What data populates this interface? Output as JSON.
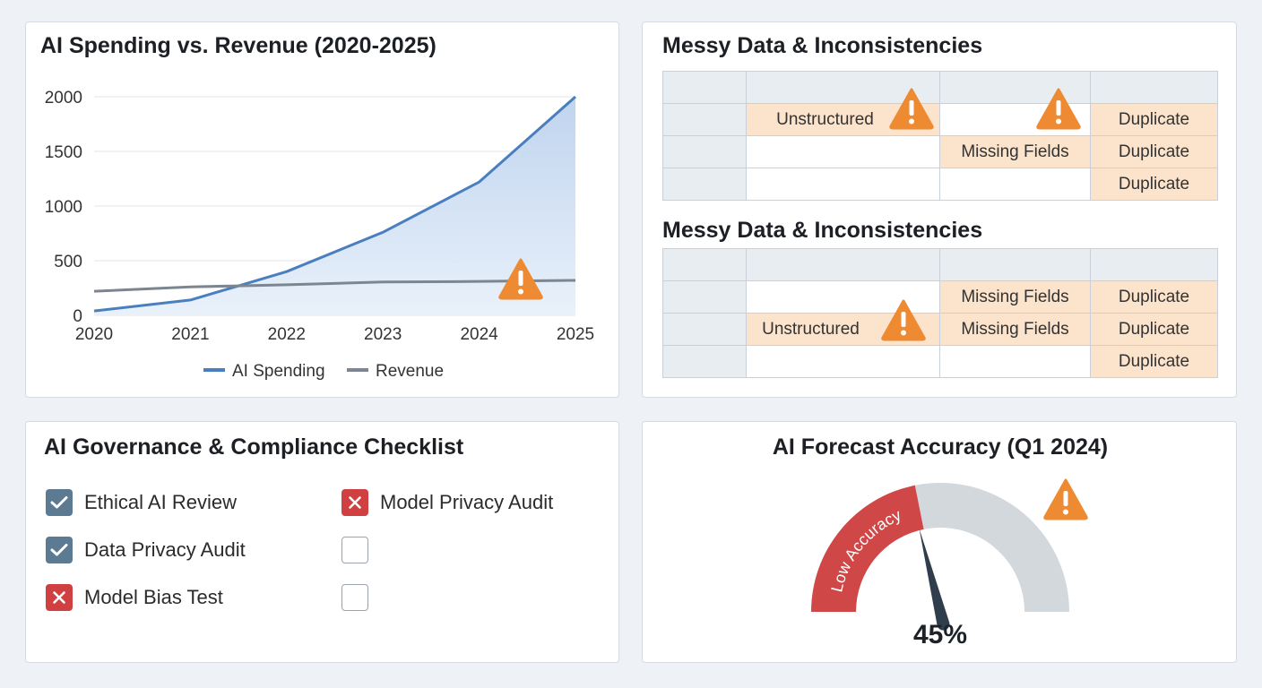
{
  "chart_panel": {
    "title": "AI Spending vs. Revenue (2020-2025)"
  },
  "chart_data": {
    "type": "line",
    "title": "AI Spending vs. Revenue (2020-2025)",
    "x": [
      "2020",
      "2021",
      "2022",
      "2023",
      "2024",
      "2025"
    ],
    "y_ticks": [
      "0",
      "500",
      "1000",
      "1500",
      "2000"
    ],
    "ylim": [
      0,
      2000
    ],
    "grid": true,
    "legend_position": "bottom-center",
    "series": [
      {
        "name": "AI Spending",
        "values": [
          40,
          140,
          400,
          760,
          1220,
          2000
        ],
        "color": "#4a7fbf",
        "fill": "area"
      },
      {
        "name": "Revenue",
        "values": [
          220,
          260,
          280,
          305,
          310,
          320
        ],
        "color": "#7c8690"
      }
    ],
    "annotations": [
      {
        "type": "warning-icon",
        "x": "2024.4",
        "y": 340
      }
    ]
  },
  "messy": {
    "title_1": "Messy Data & Inconsistencies",
    "title_2": "Messy Data & Inconsistencies",
    "table_1": {
      "r1": {
        "c1": "Unstructured",
        "c2": "",
        "c3": "Duplicate"
      },
      "r2": {
        "c1": "",
        "c2": "Missing Fields",
        "c3": "Duplicate"
      },
      "r3": {
        "c1": "",
        "c2": "",
        "c3": "Duplicate"
      }
    },
    "table_2": {
      "r1": {
        "c1": "",
        "c2": "Missing Fields",
        "c3": "Duplicate"
      },
      "r2": {
        "c1": "Unstructured",
        "c2": "Missing Fields",
        "c3": "Duplicate"
      },
      "r3": {
        "c1": "",
        "c2": "",
        "c3": "Duplicate"
      }
    }
  },
  "checklist": {
    "title": "AI Governance & Compliance Checklist",
    "items": [
      {
        "label": "Ethical AI Review",
        "state": "checked"
      },
      {
        "label": "Data Privacy Audit",
        "state": "checked"
      },
      {
        "label": "Model Bias Test",
        "state": "failed"
      },
      {
        "label": "Model Privacy Audit",
        "state": "failed"
      },
      {
        "label": "",
        "state": "empty"
      },
      {
        "label": "",
        "state": "empty"
      }
    ]
  },
  "gauge": {
    "title": "AI Forecast Accuracy (Q1 2024)",
    "value_label": "45%",
    "value": 45,
    "zone_label": "Low Accuracy",
    "zone_color": "#cf4747",
    "track_color": "#d3d8dd"
  },
  "colors": {
    "warning": "#ee8a32",
    "highlight_cell": "#fbe3cc",
    "header_cell": "#e8edf2"
  }
}
